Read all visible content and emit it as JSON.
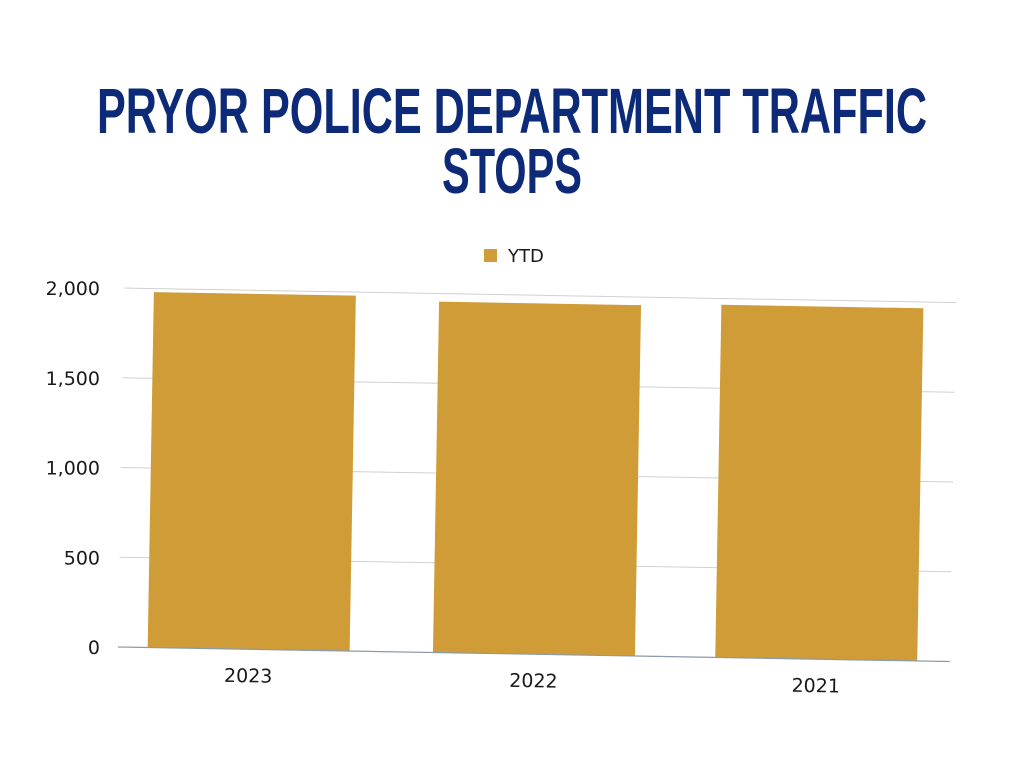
{
  "chart_data": {
    "type": "bar",
    "title_lines": [
      "PRYOR POLICE DEPARTMENT TRAFFIC",
      "STOPS"
    ],
    "categories": [
      "2023",
      "2022",
      "2021"
    ],
    "series": [
      {
        "name": "YTD",
        "values": [
          1980,
          1955,
          1965
        ]
      }
    ],
    "ylim": [
      0,
      2000
    ],
    "yticks": [
      0,
      500,
      1000,
      1500,
      2000
    ],
    "ytick_labels": [
      "0",
      "500",
      "1,000",
      "1,500",
      "2,000"
    ],
    "grid": true,
    "legend_position": "top-center",
    "colors": {
      "title": "#0c2a78",
      "bar": "#cf9c37",
      "grid": "#d0d0d0",
      "axis": "#8a9aa8"
    }
  }
}
